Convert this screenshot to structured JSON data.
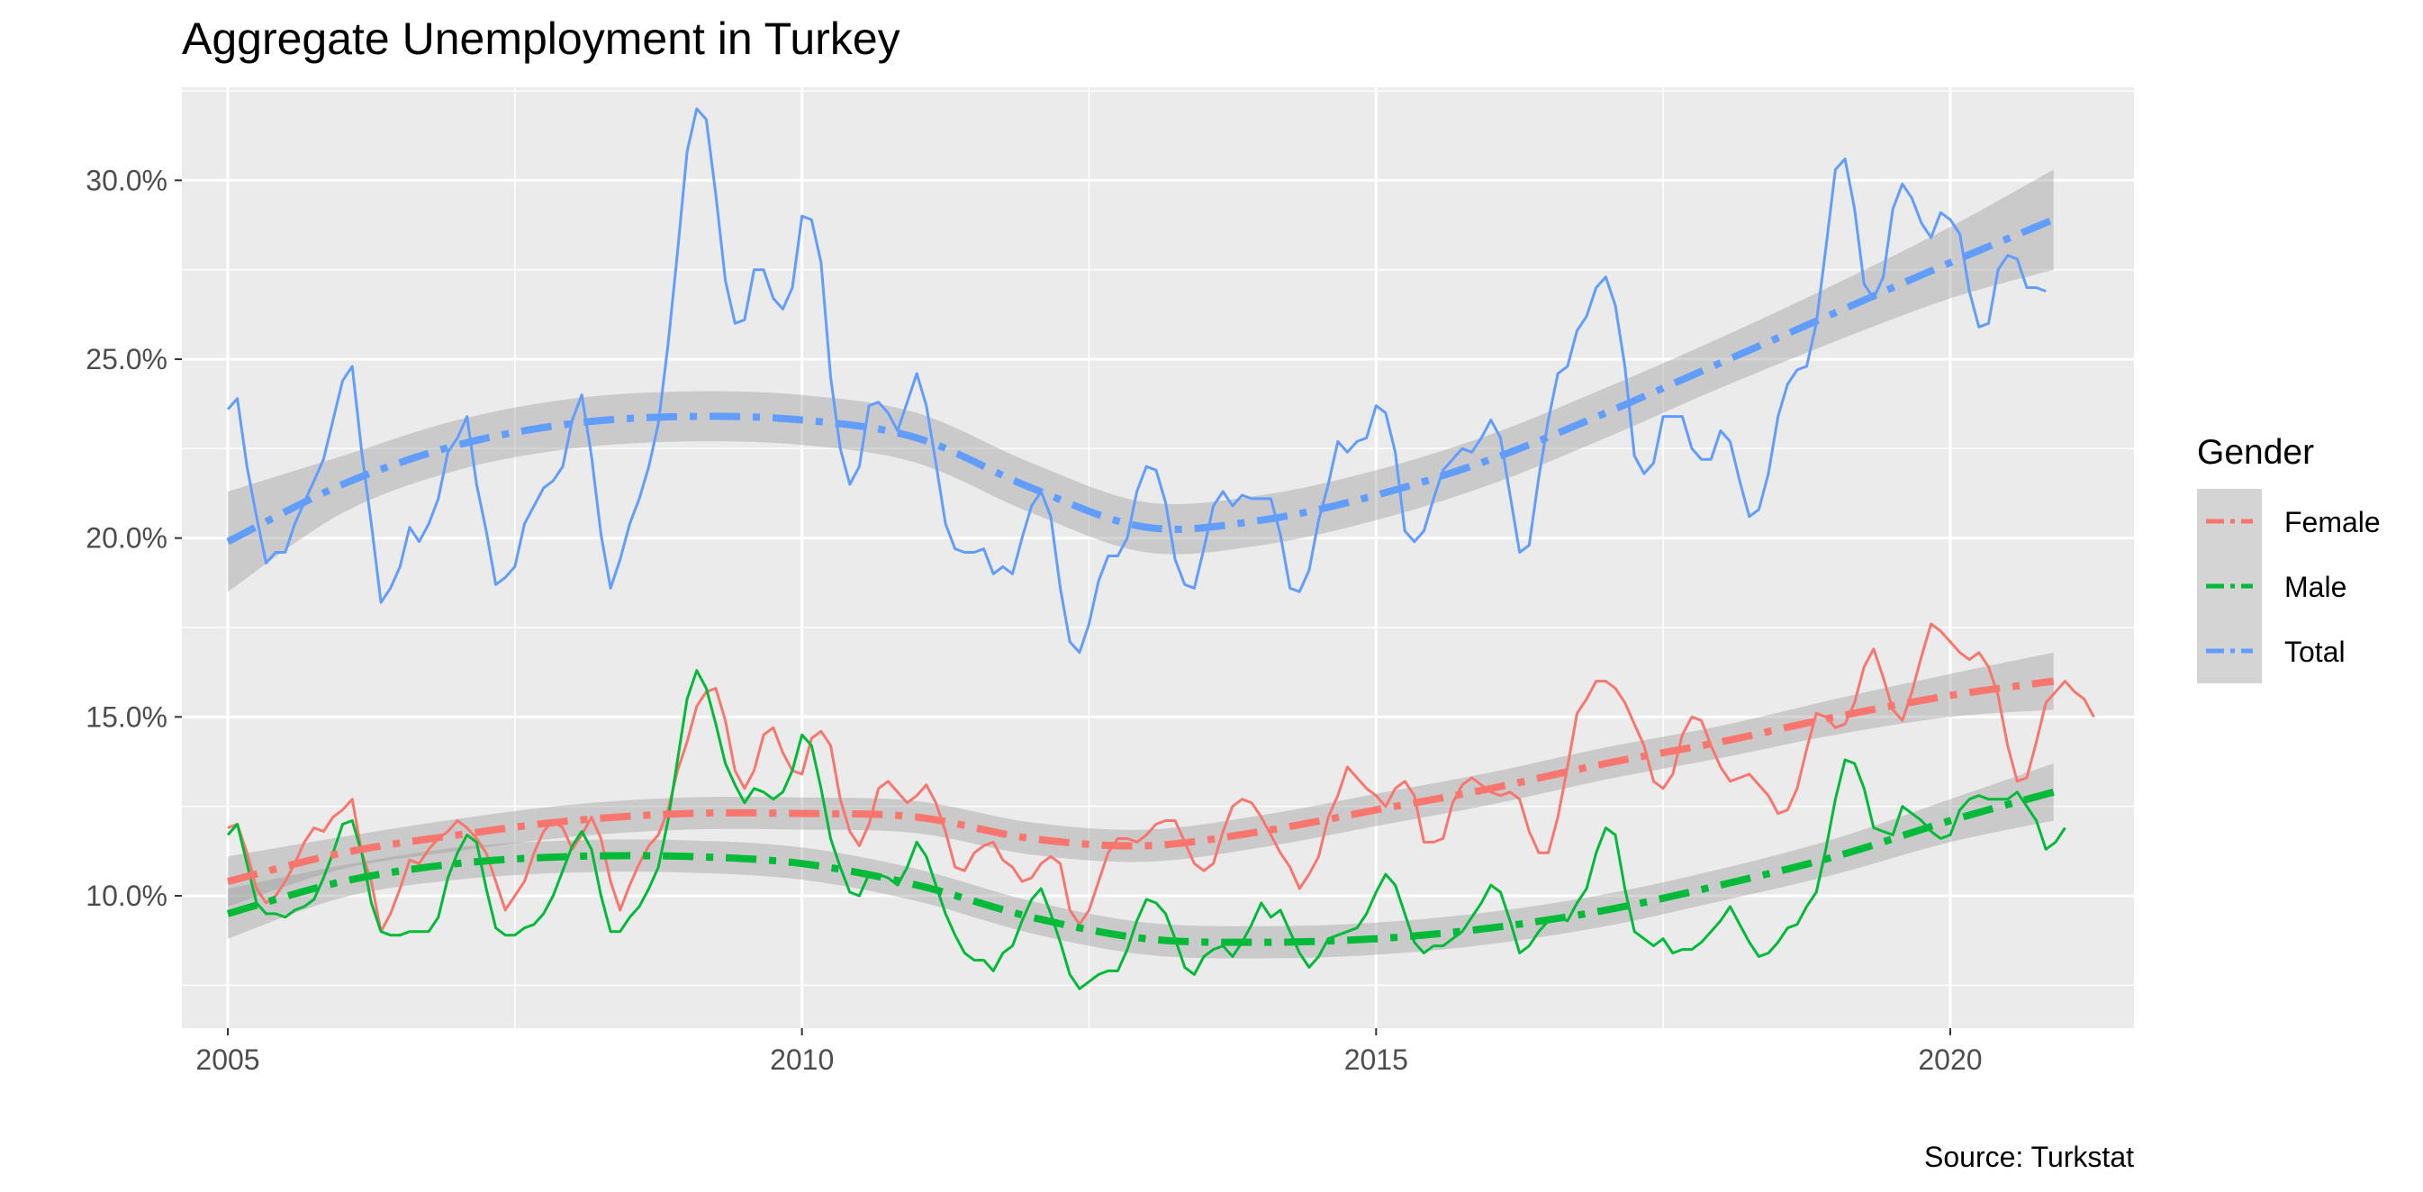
{
  "chart_data": {
    "type": "line",
    "title": "Aggregate Unemployment in Turkey",
    "xlabel": "",
    "ylabel": "",
    "caption": "Source: Turkstat",
    "xlim": [
      2004.6,
      2021.6
    ],
    "ylim": [
      6.3,
      32.6
    ],
    "x_ticks": [
      2005,
      2010,
      2015,
      2020
    ],
    "x_tick_labels": [
      "2005",
      "2010",
      "2015",
      "2020"
    ],
    "y_ticks": [
      10,
      15,
      20,
      25,
      30
    ],
    "y_tick_labels": [
      "10.0%",
      "15.0%",
      "20.0%",
      "25.0%",
      "30.0%"
    ],
    "grid": true,
    "legend": {
      "title": "Gender",
      "position": "right"
    },
    "x_start": 2005.0,
    "x_step": 0.0833333,
    "series": [
      {
        "name": "Female",
        "color": "#F8766D",
        "values": [
          11.9,
          12.0,
          11.2,
          10.2,
          9.8,
          10.0,
          10.4,
          10.9,
          11.5,
          11.9,
          11.8,
          12.2,
          12.4,
          12.7,
          11.2,
          10.4,
          9.0,
          9.5,
          10.2,
          11.0,
          10.9,
          11.3,
          11.6,
          11.8,
          12.1,
          11.9,
          11.6,
          11.2,
          10.4,
          9.6,
          10.0,
          10.4,
          11.2,
          11.8,
          12.1,
          11.9,
          11.3,
          11.7,
          12.2,
          11.6,
          10.4,
          9.6,
          10.3,
          10.9,
          11.4,
          11.7,
          12.4,
          13.5,
          14.3,
          15.3,
          15.7,
          15.8,
          14.9,
          13.5,
          13.0,
          13.5,
          14.5,
          14.7,
          14.0,
          13.5,
          13.4,
          14.4,
          14.6,
          14.2,
          12.7,
          11.8,
          11.4,
          12.0,
          13.0,
          13.2,
          12.9,
          12.6,
          12.8,
          13.1,
          12.6,
          11.8,
          10.8,
          10.7,
          11.2,
          11.4,
          11.5,
          11.0,
          10.8,
          10.4,
          10.5,
          10.9,
          11.1,
          10.9,
          9.6,
          9.2,
          9.6,
          10.4,
          11.2,
          11.6,
          11.6,
          11.5,
          11.7,
          12.0,
          12.1,
          12.1,
          11.5,
          10.9,
          10.7,
          10.9,
          11.8,
          12.5,
          12.7,
          12.6,
          12.2,
          11.7,
          11.2,
          10.8,
          10.2,
          10.6,
          11.1,
          12.2,
          12.8,
          13.6,
          13.3,
          13.0,
          12.8,
          12.5,
          13.0,
          13.2,
          12.8,
          11.5,
          11.5,
          11.6,
          12.6,
          13.1,
          13.3,
          13.1,
          12.9,
          12.8,
          12.9,
          12.7,
          11.8,
          11.2,
          11.2,
          12.2,
          13.6,
          15.1,
          15.5,
          16.0,
          16.0,
          15.8,
          15.4,
          14.8,
          14.2,
          13.2,
          13.0,
          13.4,
          14.5,
          15.0,
          14.9,
          14.2,
          13.6,
          13.2,
          13.3,
          13.4,
          13.1,
          12.8,
          12.3,
          12.4,
          13.0,
          14.1,
          15.1,
          15.0,
          14.7,
          14.8,
          15.4,
          16.4,
          16.9,
          16.1,
          15.2,
          14.9,
          15.7,
          16.7,
          17.6,
          17.4,
          17.1,
          16.8,
          16.6,
          16.8,
          16.4,
          15.6,
          14.2,
          13.2,
          13.3,
          14.3,
          15.4,
          15.7,
          16.0,
          15.7,
          15.5,
          15.0
        ]
      },
      {
        "name": "Male",
        "color": "#00BA38",
        "values": [
          11.7,
          12.0,
          10.9,
          9.8,
          9.5,
          9.5,
          9.4,
          9.6,
          9.7,
          9.9,
          10.5,
          11.2,
          12.0,
          12.1,
          11.2,
          9.8,
          9.0,
          8.9,
          8.9,
          9.0,
          9.0,
          9.0,
          9.4,
          10.5,
          11.2,
          11.7,
          11.5,
          10.2,
          9.1,
          8.9,
          8.9,
          9.1,
          9.2,
          9.5,
          10.0,
          10.7,
          11.4,
          11.8,
          11.3,
          10.0,
          9.0,
          9.0,
          9.4,
          9.7,
          10.2,
          10.8,
          12.1,
          13.8,
          15.5,
          16.3,
          15.8,
          14.8,
          13.7,
          13.1,
          12.6,
          13.0,
          12.9,
          12.7,
          12.9,
          13.5,
          14.5,
          14.2,
          13.0,
          11.6,
          10.8,
          10.1,
          10.0,
          10.6,
          10.6,
          10.5,
          10.3,
          10.8,
          11.5,
          11.1,
          10.3,
          9.5,
          8.9,
          8.4,
          8.2,
          8.2,
          7.9,
          8.4,
          8.6,
          9.3,
          9.9,
          10.2,
          9.5,
          8.7,
          7.8,
          7.4,
          7.6,
          7.8,
          7.9,
          7.9,
          8.5,
          9.3,
          9.9,
          9.8,
          9.5,
          8.8,
          8.0,
          7.8,
          8.3,
          8.5,
          8.6,
          8.3,
          8.7,
          9.2,
          9.8,
          9.4,
          9.6,
          9.0,
          8.4,
          8.0,
          8.3,
          8.8,
          8.9,
          9.0,
          9.1,
          9.5,
          10.1,
          10.6,
          10.3,
          9.5,
          8.7,
          8.4,
          8.6,
          8.6,
          8.8,
          9.0,
          9.4,
          9.8,
          10.3,
          10.1,
          9.3,
          8.4,
          8.6,
          9.0,
          9.3,
          9.4,
          9.3,
          9.8,
          10.2,
          11.2,
          11.9,
          11.7,
          10.2,
          9.0,
          8.8,
          8.6,
          8.8,
          8.4,
          8.5,
          8.5,
          8.7,
          9.0,
          9.3,
          9.7,
          9.2,
          8.7,
          8.3,
          8.4,
          8.7,
          9.1,
          9.2,
          9.7,
          10.1,
          11.3,
          12.7,
          13.8,
          13.7,
          13.0,
          11.9,
          11.8,
          11.7,
          12.5,
          12.3,
          12.1,
          11.8,
          11.6,
          11.7,
          12.4,
          12.7,
          12.8,
          12.7,
          12.7,
          12.7,
          12.9,
          12.5,
          12.1,
          11.3,
          11.5,
          11.9
        ]
      },
      {
        "name": "Total",
        "color": "#619CFF",
        "values": [
          23.6,
          23.9,
          22.0,
          20.6,
          19.3,
          19.6,
          19.6,
          20.4,
          21.0,
          21.6,
          22.2,
          23.3,
          24.4,
          24.8,
          22.4,
          20.4,
          18.2,
          18.6,
          19.2,
          20.3,
          19.9,
          20.4,
          21.1,
          22.4,
          22.8,
          23.4,
          21.5,
          20.2,
          18.7,
          18.9,
          19.2,
          20.4,
          20.9,
          21.4,
          21.6,
          22.0,
          23.3,
          24.0,
          22.3,
          20.1,
          18.6,
          19.4,
          20.4,
          21.1,
          22.0,
          23.2,
          25.4,
          28.0,
          30.8,
          32.0,
          31.7,
          29.6,
          27.2,
          26.0,
          26.1,
          27.5,
          27.5,
          26.7,
          26.4,
          27.0,
          29.0,
          28.9,
          27.7,
          24.5,
          22.5,
          21.5,
          22.0,
          23.7,
          23.8,
          23.5,
          23.0,
          23.8,
          24.6,
          23.7,
          22.1,
          20.4,
          19.7,
          19.6,
          19.6,
          19.7,
          19.0,
          19.2,
          19.0,
          20.0,
          20.9,
          21.3,
          20.6,
          18.6,
          17.1,
          16.8,
          17.6,
          18.8,
          19.5,
          19.5,
          20.0,
          21.3,
          22.0,
          21.9,
          21.0,
          19.4,
          18.7,
          18.6,
          19.7,
          20.9,
          21.3,
          20.9,
          21.2,
          21.1,
          21.1,
          21.1,
          20.1,
          18.6,
          18.5,
          19.1,
          20.5,
          21.5,
          22.7,
          22.4,
          22.7,
          22.8,
          23.7,
          23.5,
          22.4,
          20.2,
          19.9,
          20.2,
          21.1,
          21.9,
          22.2,
          22.5,
          22.4,
          22.8,
          23.3,
          22.8,
          21.2,
          19.6,
          19.8,
          21.7,
          23.3,
          24.6,
          24.8,
          25.8,
          26.2,
          27.0,
          27.3,
          26.5,
          24.8,
          22.3,
          21.8,
          22.1,
          23.4,
          23.4,
          23.4,
          22.5,
          22.2,
          22.2,
          23.0,
          22.7,
          21.6,
          20.6,
          20.8,
          21.8,
          23.4,
          24.3,
          24.7,
          24.8,
          26.0,
          28.1,
          30.3,
          30.6,
          29.2,
          27.1,
          26.7,
          27.3,
          29.2,
          29.9,
          29.5,
          28.8,
          28.4,
          29.1,
          28.9,
          28.5,
          26.9,
          25.9,
          26.0,
          27.5,
          27.9,
          27.8,
          27.0,
          27.0,
          26.9
        ]
      },
      {
        "name": "Female trend",
        "color": "#F8766D",
        "x": [
          2005,
          2006,
          2007,
          2008,
          2009,
          2010,
          2011,
          2012,
          2013,
          2014,
          2015,
          2016,
          2017,
          2018,
          2019,
          2020,
          2020.9
        ],
        "values": [
          10.4,
          11.2,
          11.7,
          12.1,
          12.3,
          12.3,
          12.2,
          11.6,
          11.4,
          11.8,
          12.4,
          13.0,
          13.7,
          14.3,
          15.0,
          15.6,
          16.0
        ],
        "band": [
          0.7,
          0.45,
          0.45,
          0.45,
          0.45,
          0.45,
          0.45,
          0.45,
          0.45,
          0.45,
          0.45,
          0.45,
          0.45,
          0.45,
          0.5,
          0.6,
          0.8
        ]
      },
      {
        "name": "Male trend",
        "color": "#00BA38",
        "x": [
          2005,
          2006,
          2007,
          2008,
          2009,
          2010,
          2011,
          2012,
          2013,
          2014,
          2015,
          2016,
          2017,
          2018,
          2019,
          2020,
          2020.9
        ],
        "values": [
          9.5,
          10.4,
          10.9,
          11.1,
          11.1,
          10.9,
          10.3,
          9.4,
          8.8,
          8.7,
          8.8,
          9.1,
          9.6,
          10.3,
          11.1,
          12.1,
          12.9
        ],
        "band": [
          0.7,
          0.45,
          0.45,
          0.45,
          0.45,
          0.45,
          0.45,
          0.45,
          0.45,
          0.45,
          0.45,
          0.45,
          0.45,
          0.45,
          0.5,
          0.6,
          0.8
        ]
      },
      {
        "name": "Total trend",
        "color": "#619CFF",
        "x": [
          2005,
          2006,
          2007,
          2008,
          2009,
          2010,
          2011,
          2012,
          2013,
          2014,
          2015,
          2016,
          2017,
          2018,
          2019,
          2020,
          2020.9
        ],
        "values": [
          19.9,
          21.5,
          22.6,
          23.2,
          23.4,
          23.3,
          22.8,
          21.4,
          20.3,
          20.5,
          21.2,
          22.2,
          23.5,
          24.9,
          26.3,
          27.7,
          28.9
        ],
        "band": [
          1.4,
          0.8,
          0.7,
          0.7,
          0.7,
          0.7,
          0.7,
          0.7,
          0.7,
          0.7,
          0.7,
          0.7,
          0.7,
          0.7,
          0.8,
          1.0,
          1.4
        ]
      }
    ]
  }
}
